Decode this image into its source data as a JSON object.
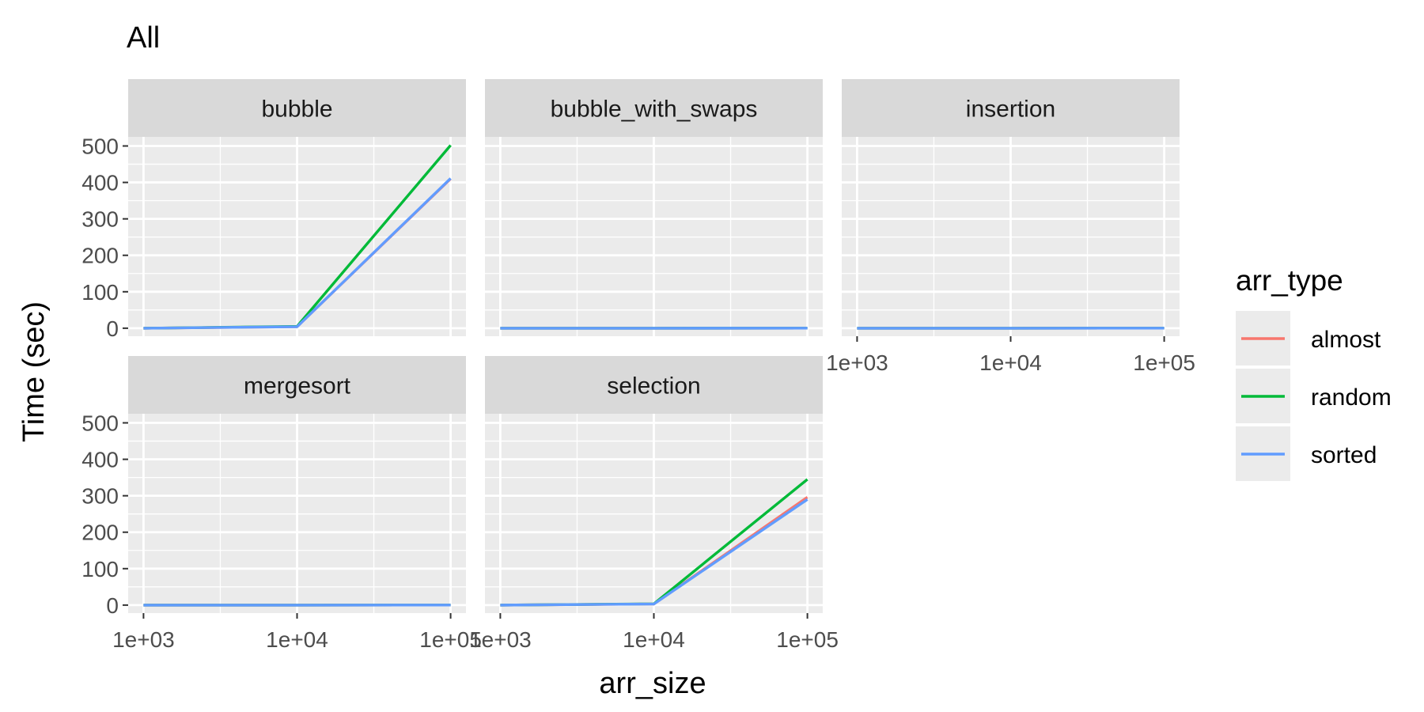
{
  "title": "All",
  "chart_data": {
    "type": "line",
    "title": "All",
    "xlabel": "arr_size",
    "ylabel": "Time (sec)",
    "x_scale": "log10",
    "x": [
      1000,
      10000,
      100000
    ],
    "x_tick_labels": [
      "1e+03",
      "1e+04",
      "1e+05"
    ],
    "y_ticks": [
      0,
      100,
      200,
      300,
      400,
      500
    ],
    "ylim": [
      -22,
      525
    ],
    "grid": true,
    "legend": {
      "title": "arr_type",
      "position": "right",
      "entries": [
        {
          "name": "almost",
          "color": "#F8766D"
        },
        {
          "name": "random",
          "color": "#00BA38"
        },
        {
          "name": "sorted",
          "color": "#619CFF"
        }
      ]
    },
    "facets": [
      {
        "name": "bubble",
        "series": [
          {
            "name": "almost",
            "values": [
              0.02,
              4,
              410
            ]
          },
          {
            "name": "random",
            "values": [
              0.03,
              5,
              502
            ]
          },
          {
            "name": "sorted",
            "values": [
              0.02,
              4,
              411
            ]
          }
        ]
      },
      {
        "name": "bubble_with_swaps",
        "series": [
          {
            "name": "almost",
            "values": [
              0,
              0.01,
              0.1
            ]
          },
          {
            "name": "random",
            "values": [
              0,
              0.01,
              0.1
            ]
          },
          {
            "name": "sorted",
            "values": [
              0,
              0.01,
              0.1
            ]
          }
        ]
      },
      {
        "name": "insertion",
        "series": [
          {
            "name": "almost",
            "values": [
              0,
              0.01,
              0.1
            ]
          },
          {
            "name": "random",
            "values": [
              0,
              0.01,
              0.1
            ]
          },
          {
            "name": "sorted",
            "values": [
              0,
              0.01,
              0.1
            ]
          }
        ]
      },
      {
        "name": "mergesort",
        "series": [
          {
            "name": "almost",
            "values": [
              0,
              0.01,
              0.1
            ]
          },
          {
            "name": "random",
            "values": [
              0,
              0.01,
              0.1
            ]
          },
          {
            "name": "sorted",
            "values": [
              0,
              0.01,
              0.1
            ]
          }
        ]
      },
      {
        "name": "selection",
        "series": [
          {
            "name": "almost",
            "values": [
              0.02,
              3,
              296
            ]
          },
          {
            "name": "random",
            "values": [
              0.03,
              3.5,
              345
            ]
          },
          {
            "name": "sorted",
            "values": [
              0.02,
              3,
              290
            ]
          }
        ]
      }
    ]
  }
}
